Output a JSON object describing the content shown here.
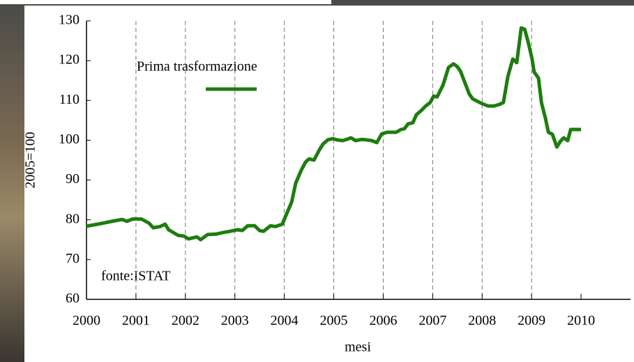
{
  "chart_data": {
    "type": "line",
    "y_label": "2005=100",
    "x_label": "mesi",
    "annotation": "fonte:ISTAT",
    "x": [
      2000,
      2000.23,
      2000.51,
      2000.72,
      2000.82,
      2000.93,
      2001.11,
      2001.26,
      2001.35,
      2001.49,
      2001.59,
      2001.66,
      2001.85,
      2001.97,
      2002.06,
      2002.23,
      2002.31,
      2002.45,
      2002.62,
      2002.76,
      2002.9,
      2003.05,
      2003.15,
      2003.26,
      2003.4,
      2003.5,
      2003.58,
      2003.72,
      2003.82,
      2003.96,
      2004.03,
      2004.15,
      2004.23,
      2004.34,
      2004.43,
      2004.5,
      2004.6,
      2004.71,
      2004.78,
      2004.88,
      2004.98,
      2005.06,
      2005.18,
      2005.26,
      2005.35,
      2005.44,
      2005.56,
      2005.66,
      2005.77,
      2005.87,
      2005.97,
      2006.08,
      2006.26,
      2006.36,
      2006.43,
      2006.5,
      2006.6,
      2006.67,
      2006.78,
      2006.85,
      2006.95,
      2007.02,
      2007.09,
      2007.21,
      2007.32,
      2007.42,
      2007.49,
      2007.56,
      2007.66,
      2007.74,
      2007.81,
      2007.98,
      2008.12,
      2008.24,
      2008.35,
      2008.43,
      2008.52,
      2008.62,
      2008.7,
      2008.79,
      2008.86,
      2008.93,
      2009.01,
      2009.05,
      2009.14,
      2009.2,
      2009.28,
      2009.34,
      2009.42,
      2009.51,
      2009.58,
      2009.65,
      2009.73,
      2009.79,
      2010
    ],
    "series": [
      {
        "name": "Prima trasformazione",
        "color": "#1d7d0e",
        "values": [
          78.4,
          78.9,
          79.6,
          80.1,
          79.6,
          80.2,
          80.2,
          79.2,
          78,
          78.3,
          78.9,
          77.5,
          76.1,
          75.9,
          75.2,
          75.7,
          75,
          76.3,
          76.4,
          76.8,
          77.1,
          77.5,
          77.3,
          78.5,
          78.5,
          77.3,
          77.1,
          78.5,
          78.3,
          78.9,
          81,
          84.5,
          89.2,
          92.4,
          94.5,
          95.3,
          95,
          97.6,
          99,
          100.1,
          100.4,
          100.1,
          99.9,
          100.2,
          100.6,
          99.9,
          100.2,
          100.1,
          99.9,
          99.4,
          101.6,
          102,
          102,
          102.7,
          102.9,
          104.1,
          104.4,
          106.4,
          107.6,
          108.5,
          109.5,
          111.1,
          110.9,
          113.9,
          118.3,
          119.2,
          118.6,
          117.4,
          114.2,
          111.6,
          110.4,
          109.3,
          108.6,
          108.6,
          109,
          109.5,
          116,
          120.4,
          119.5,
          128.2,
          127.9,
          124.7,
          120.4,
          117.2,
          115.6,
          109.4,
          105.5,
          102,
          101.5,
          98.3,
          99.7,
          100.6,
          99.9,
          102.7,
          102.7
        ]
      }
    ],
    "xlim": [
      2000,
      2011
    ],
    "xticks": [
      2000,
      2001,
      2002,
      2003,
      2004,
      2005,
      2006,
      2007,
      2008,
      2009,
      2010
    ],
    "ylim": [
      60,
      130
    ],
    "yticks": [
      60,
      70,
      80,
      90,
      100,
      110,
      120,
      130
    ],
    "grid": true,
    "legend": "upper-left"
  }
}
